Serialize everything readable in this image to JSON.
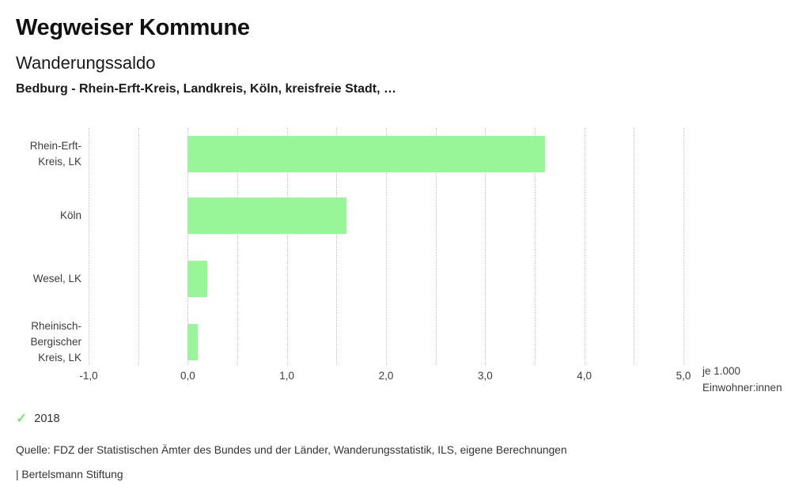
{
  "header": {
    "title": "Wegweiser Kommune",
    "subtitle": "Wanderungssaldo",
    "selection": "Bedburg - Rhein-Erft-Kreis, Landkreis, Köln, kreisfreie Stadt, …"
  },
  "chart_data": {
    "type": "bar",
    "orientation": "horizontal",
    "title": "Wanderungssaldo",
    "categories": [
      "Rhein-Erft-Kreis, LK",
      "Köln",
      "Wesel, LK",
      "Rheinisch-Bergischer Kreis, LK"
    ],
    "category_lines": [
      [
        "Rhein-Erft-",
        "Kreis, LK"
      ],
      [
        "Köln"
      ],
      [
        "Wesel, LK"
      ],
      [
        "Rheinisch-",
        "Bergischer",
        "Kreis, LK"
      ]
    ],
    "values": [
      3.6,
      1.6,
      0.2,
      0.1
    ],
    "series_year": "2018",
    "xlim": [
      -1.0,
      5.0
    ],
    "gridline_step": 0.5,
    "grid": true,
    "x_ticks": [
      -1.0,
      0.0,
      1.0,
      2.0,
      3.0,
      4.0,
      5.0
    ],
    "x_tick_labels": [
      "-1,0",
      "0,0",
      "1,0",
      "2,0",
      "3,0",
      "4,0",
      "5,0"
    ],
    "xlabel": "je 1.000 Einwohner:innen",
    "unit_label_lines": [
      "je 1.000",
      "Einwohner:innen"
    ],
    "bar_color": "#98f598",
    "legend_position": "bottom-left"
  },
  "legend": {
    "year": "2018"
  },
  "icons": {
    "check": "✓"
  },
  "colors": {
    "bar": "#98f598",
    "check": "#7de57d",
    "grid": "#c6c6c6",
    "text": "#3c3c3c"
  },
  "footer": {
    "source": "Quelle: FDZ der Statistischen Ämter des Bundes und der Länder, Wanderungsstatistik, ILS, eigene Berechnungen",
    "attribution": "| Bertelsmann Stiftung"
  }
}
